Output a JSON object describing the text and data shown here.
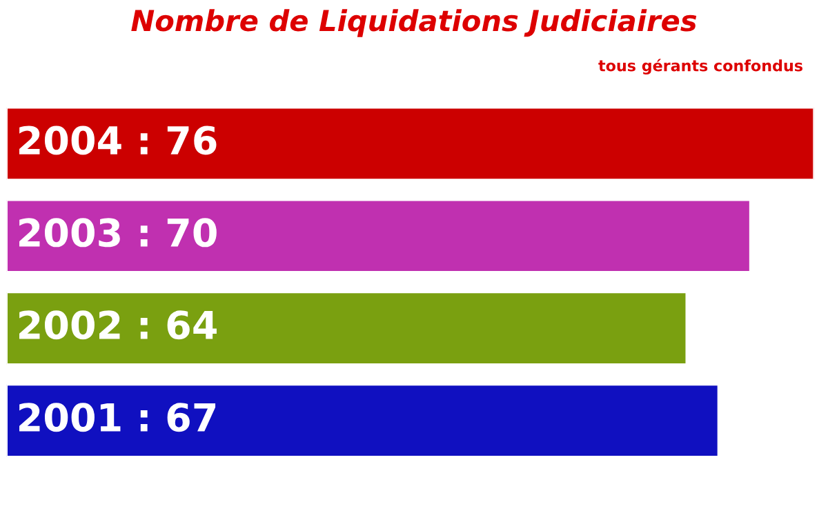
{
  "chart_data": {
    "type": "bar",
    "orientation": "horizontal",
    "title": "Nombre de Liquidations Judiciaires",
    "subtitle": "tous gérants confondus",
    "categories": [
      null,
      null,
      null,
      null
    ],
    "values": [
      76,
      70,
      64,
      67
    ],
    "colors": [
      "#cc0000",
      "#c030b0",
      "#7aa010",
      "#1010c0"
    ],
    "value_labels": [
      "2004 : 76",
      "2003 : 70",
      "2002 : 64",
      "2001 : 67"
    ],
    "tick_labels": false,
    "grid": false,
    "legend": false
  }
}
